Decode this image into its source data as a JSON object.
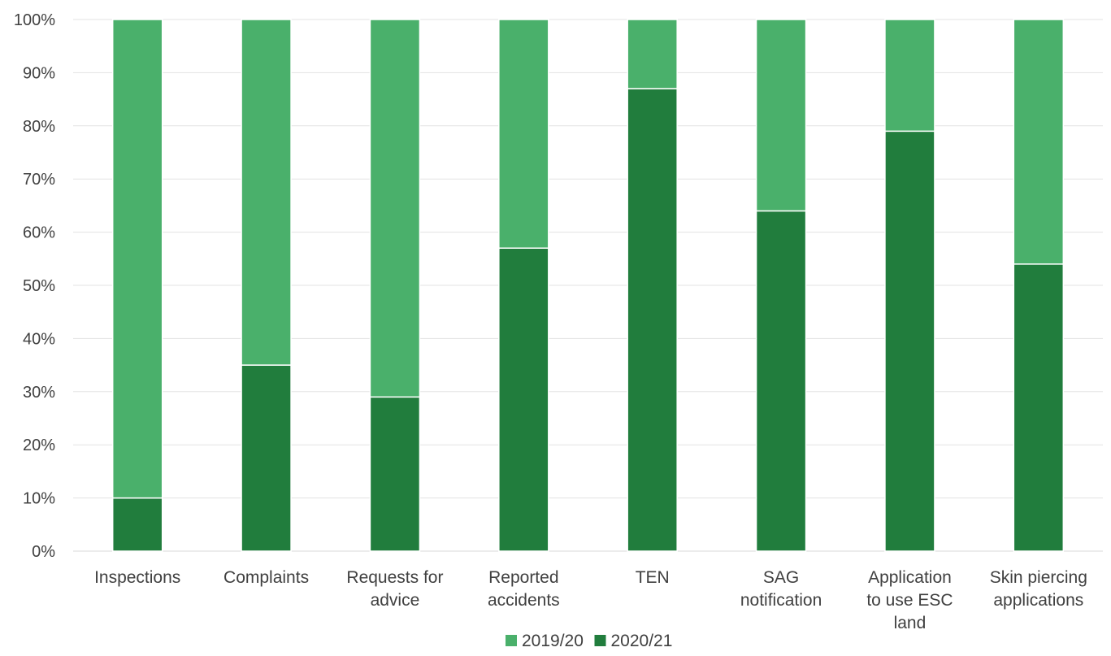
{
  "chart_data": {
    "type": "bar",
    "stacked": true,
    "percent_stacked": true,
    "categories": [
      [
        "Inspections"
      ],
      [
        "Complaints"
      ],
      [
        "Requests for",
        "advice"
      ],
      [
        "Reported",
        "accidents"
      ],
      [
        "TEN"
      ],
      [
        "SAG",
        "notification"
      ],
      [
        "Application",
        "to use ESC",
        "land"
      ],
      [
        "Skin piercing",
        "applications"
      ]
    ],
    "series": [
      {
        "name": "2020/21",
        "color": "#217d3d",
        "values": [
          10,
          35,
          29,
          57,
          87,
          64,
          79,
          54
        ]
      },
      {
        "name": "2019/20",
        "color": "#4ab06b",
        "values": [
          90,
          65,
          71,
          43,
          13,
          36,
          21,
          46
        ]
      }
    ],
    "legend_order": [
      "2019/20",
      "2020/21"
    ],
    "legend_placement": "bottom",
    "y_ticks": [
      "0%",
      "10%",
      "20%",
      "30%",
      "40%",
      "50%",
      "60%",
      "70%",
      "80%",
      "90%",
      "100%"
    ],
    "ylim": [
      0,
      100
    ],
    "grid": true
  }
}
